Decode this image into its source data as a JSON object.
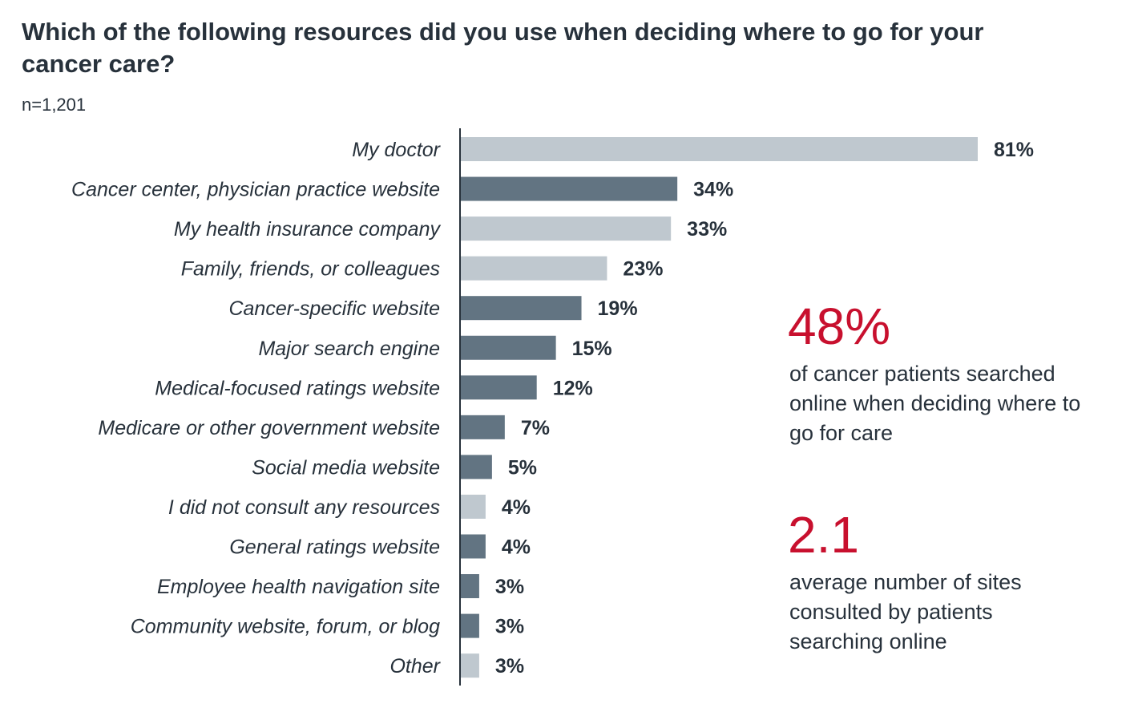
{
  "title": "Which of the following resources did you use when deciding where to go for your cancer care?",
  "subtitle": "n=1,201",
  "colors": {
    "light": "#bfc8cf",
    "dark": "#627482",
    "accent": "#c8102e",
    "text": "#27313b"
  },
  "chart_data": {
    "type": "bar",
    "orientation": "horizontal",
    "title": "Which of the following resources did you use when deciding where to go for your cancer care?",
    "subtitle": "n=1,201",
    "categories": [
      "My doctor",
      "Cancer center, physician practice website",
      "My health insurance company",
      "Family, friends, or colleagues",
      "Cancer-specific website",
      "Major search engine",
      "Medical-focused ratings website",
      "Medicare or other government website",
      "Social media website",
      "I did not consult any resources",
      "General ratings website",
      "Employee health navigation site",
      "Community website, forum, or blog",
      "Other"
    ],
    "values": [
      81,
      34,
      33,
      23,
      19,
      15,
      12,
      7,
      5,
      4,
      4,
      3,
      3,
      3
    ],
    "labels": [
      "81%",
      "34%",
      "33%",
      "23%",
      "19%",
      "15%",
      "12%",
      "7%",
      "5%",
      "4%",
      "4%",
      "3%",
      "3%",
      "3%"
    ],
    "bar_shade": [
      "light",
      "dark",
      "light",
      "light",
      "dark",
      "dark",
      "dark",
      "dark",
      "dark",
      "light",
      "dark",
      "dark",
      "dark",
      "light"
    ],
    "xlim": [
      0,
      100
    ],
    "grid": false,
    "legend": "none"
  },
  "callouts": [
    {
      "stat": "48%",
      "text": "of cancer patients searched online when deciding where to go for care"
    },
    {
      "stat": "2.1",
      "text": "average number of sites consulted by patients searching online"
    }
  ]
}
